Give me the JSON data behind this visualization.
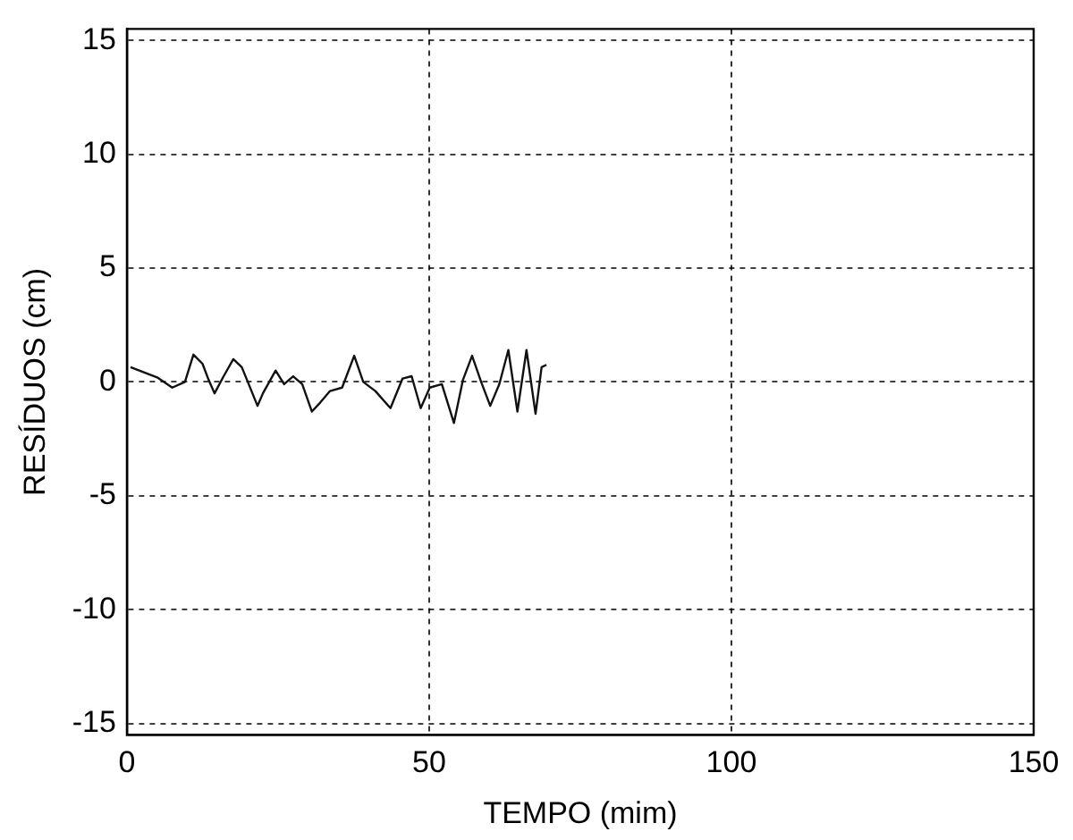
{
  "chart_data": {
    "type": "line",
    "xlabel": "TEMPO (mim)",
    "ylabel": "RESÍDUOS (cm)",
    "xlim": [
      0,
      150
    ],
    "xticks": [
      0,
      50,
      100,
      150
    ],
    "ylim": [
      -15.5,
      15.5
    ],
    "yticks": [
      -15,
      -10,
      -5,
      0,
      5,
      10,
      15
    ],
    "grid": true,
    "marker": "none",
    "line_style": "solid",
    "series": [
      {
        "color": "#111111",
        "x": [
          0.6,
          3,
          5,
          7.5,
          9.6,
          11,
          12.5,
          13.5,
          14.5,
          16,
          17.6,
          19,
          20,
          21.6,
          22.5,
          24.6,
          26,
          27.5,
          29,
          30.6,
          32,
          33.6,
          35.6,
          37.6,
          39.1,
          41.1,
          43.6,
          45.6,
          47.1,
          48.6,
          50.1,
          52.1,
          54.1,
          55.6,
          57.1,
          58.6,
          60.1,
          61.6,
          63.1,
          64.6,
          66.1,
          67.6,
          68.6,
          69.4
        ],
        "values": [
          0.65,
          0.4,
          0.2,
          -0.25,
          0,
          1.2,
          0.8,
          0.1,
          -0.5,
          0.25,
          1.0,
          0.65,
          0,
          -1.05,
          -0.5,
          0.5,
          -0.1,
          0.25,
          -0.1,
          -1.3,
          -0.9,
          -0.4,
          -0.25,
          1.15,
          0,
          -0.4,
          -1.15,
          0.15,
          0.25,
          -1.15,
          -0.25,
          -0.1,
          -1.8,
          0.1,
          1.15,
          0,
          -1.05,
          -0.1,
          1.4,
          -1.3,
          1.4,
          -1.4,
          0.65,
          0.75
        ]
      }
    ]
  }
}
